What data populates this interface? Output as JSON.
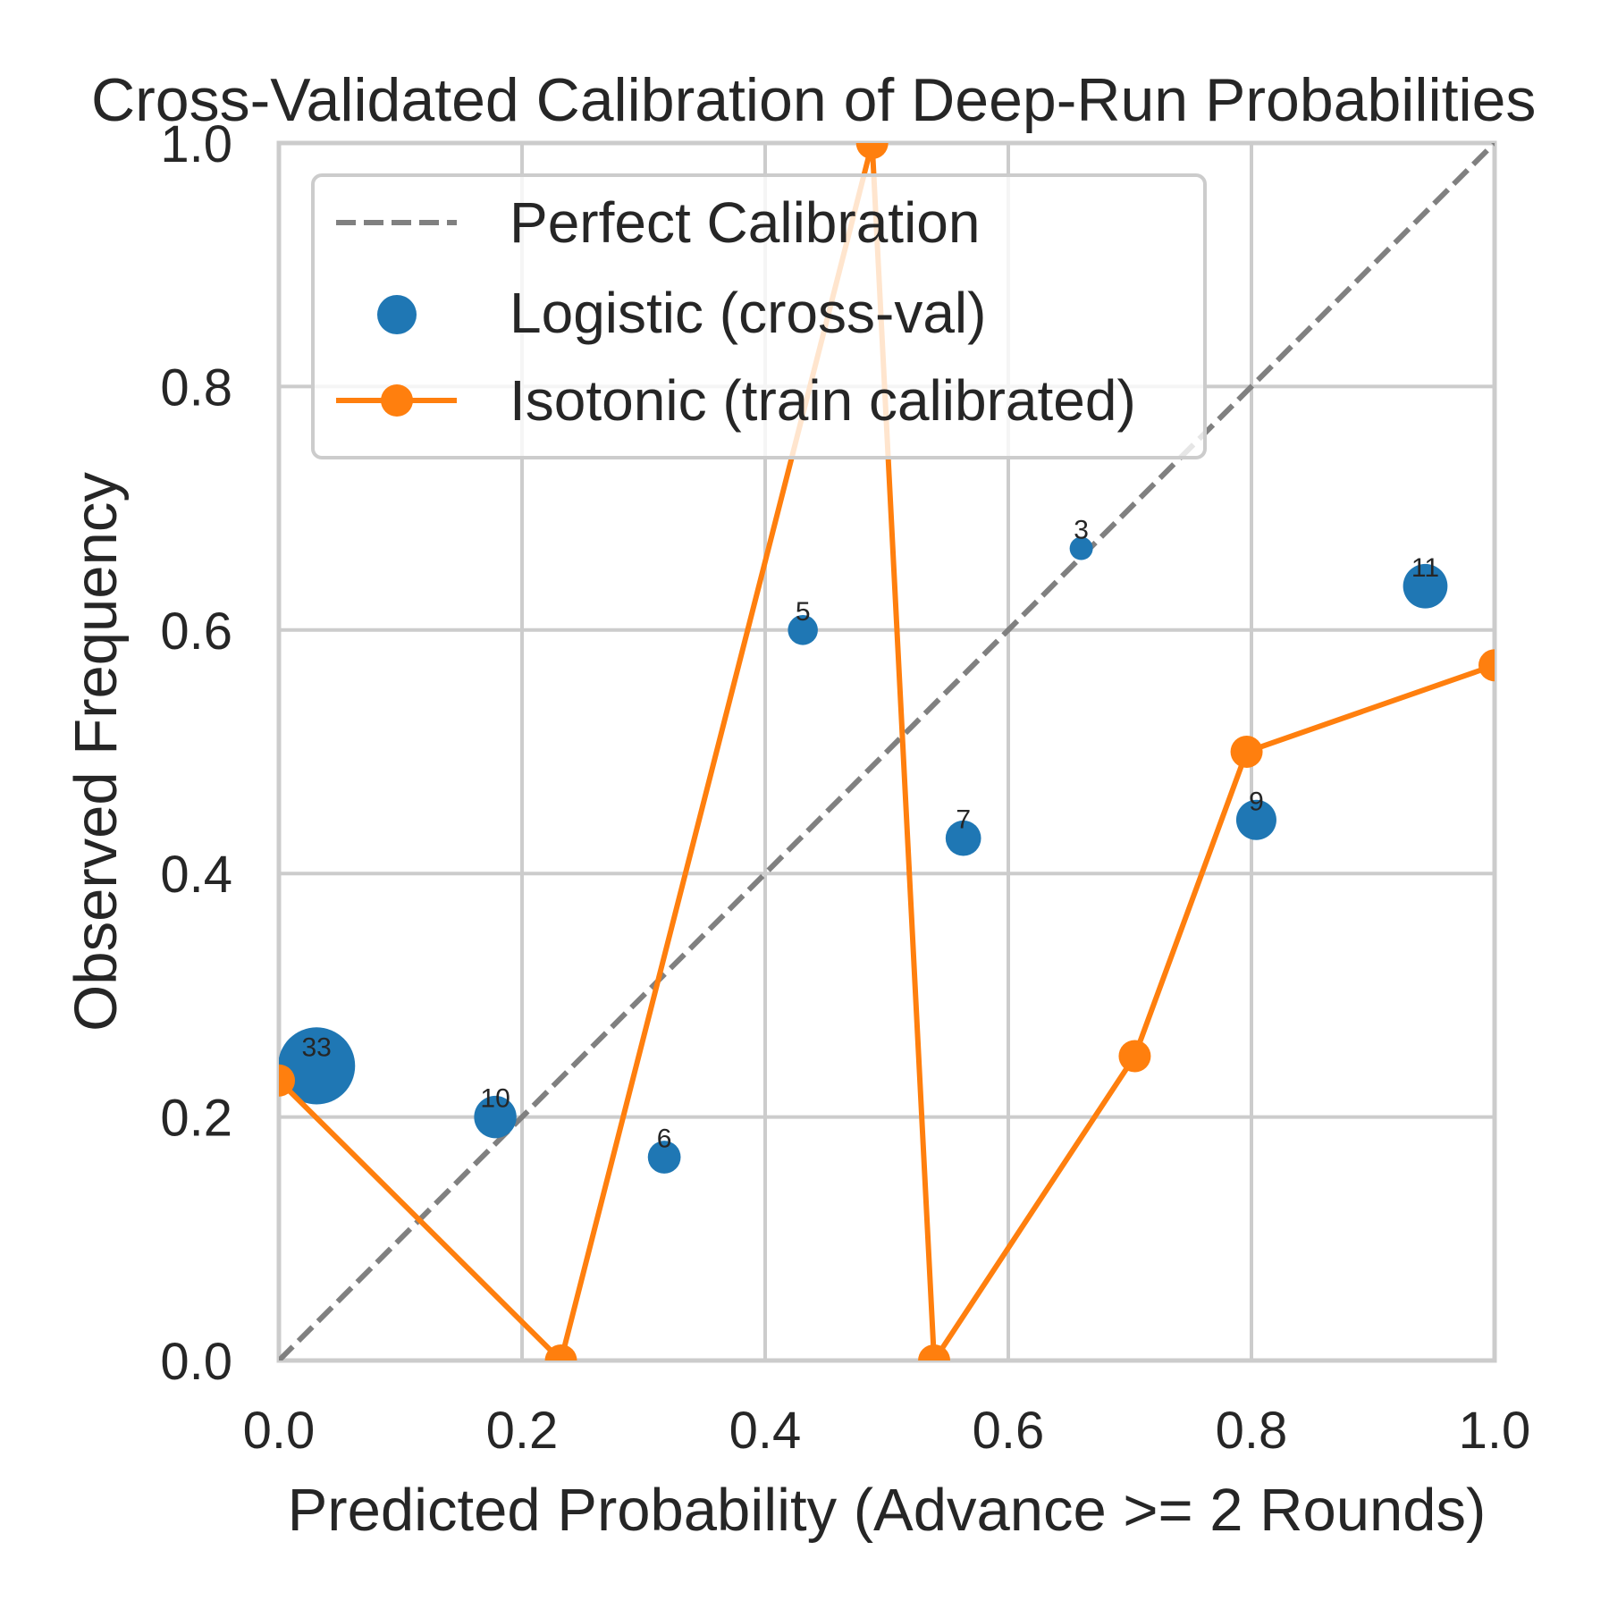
{
  "chart_data": {
    "type": "scatter",
    "title": "Cross-Validated Calibration of Deep-Run Probabilities",
    "xlabel": "Predicted Probability (Advance >= 2 Rounds)",
    "ylabel": "Observed Frequency",
    "xlim": [
      0.0,
      1.0
    ],
    "ylim": [
      0.0,
      1.0
    ],
    "xticks": [
      "0.0",
      "0.2",
      "0.4",
      "0.6",
      "0.8",
      "1.0"
    ],
    "yticks": [
      "0.0",
      "0.2",
      "0.4",
      "0.6",
      "0.8",
      "1.0"
    ],
    "grid": true,
    "legend_position": "top-left",
    "series": [
      {
        "name": "Perfect Calibration",
        "kind": "line",
        "style": "dashed",
        "color": "#808080",
        "x": [
          0.0,
          1.0
        ],
        "y": [
          0.0,
          1.0
        ]
      },
      {
        "name": "Logistic (cross-val)",
        "kind": "scatter",
        "color": "#1f77b4",
        "sized_by_count": true,
        "x": [
          0.031,
          0.178,
          0.317,
          0.431,
          0.563,
          0.66,
          0.804,
          0.943
        ],
        "y": [
          0.242,
          0.2,
          0.167,
          0.6,
          0.429,
          0.667,
          0.444,
          0.636
        ],
        "counts": [
          33,
          10,
          6,
          5,
          7,
          3,
          9,
          11
        ]
      },
      {
        "name": "Isotonic (train calibrated)",
        "kind": "line-marker",
        "color": "#ff7f0e",
        "x": [
          0.0,
          0.232,
          0.488,
          0.539,
          0.704,
          0.796,
          1.0
        ],
        "y": [
          0.23,
          0.0,
          1.0,
          0.0,
          0.25,
          0.5,
          0.571
        ]
      }
    ]
  }
}
